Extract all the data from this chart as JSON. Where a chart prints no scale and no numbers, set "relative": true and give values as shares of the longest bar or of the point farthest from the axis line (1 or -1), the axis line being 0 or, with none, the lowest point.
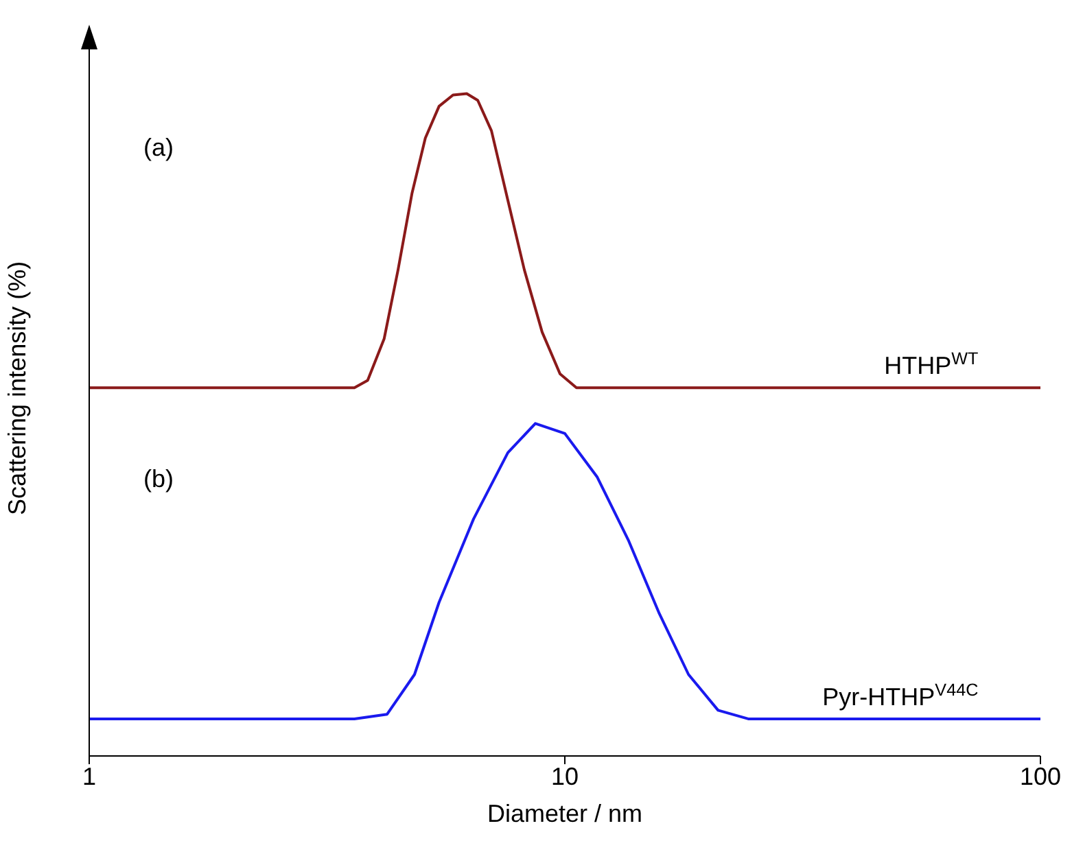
{
  "chart_data": {
    "type": "line",
    "relative": true,
    "xlabel": "Diameter / nm",
    "ylabel": "Scattering intensity (%)",
    "log": "x",
    "xlim": [
      1,
      100
    ],
    "xticks": [
      1,
      10,
      100
    ],
    "grid": false,
    "legend": false,
    "marker": "none",
    "line_style": "solid",
    "annotations": [
      "(a)",
      "(b)"
    ],
    "series": [
      {
        "name": "HTHP$^{WT}$",
        "color": "#8b1a1a",
        "x": [
          1,
          3.61,
          3.85,
          4.17,
          4.46,
          4.77,
          5.09,
          5.44,
          5.82,
          6.22,
          6.56,
          7.01,
          7.59,
          8.22,
          8.96,
          9.77,
          10.58,
          100
        ],
        "values": [
          0.556,
          0.556,
          0.567,
          0.63,
          0.734,
          0.849,
          0.933,
          0.981,
          0.998,
          1,
          0.99,
          0.944,
          0.839,
          0.734,
          0.64,
          0.577,
          0.556,
          0.556
        ]
      },
      {
        "name": "Pyr-HTHP$^{V44C}$",
        "color": "#1a1aee",
        "x": [
          1,
          3.61,
          4.23,
          4.83,
          5.44,
          6.43,
          7.59,
          8.67,
          10.0,
          11.7,
          13.6,
          15.8,
          18.2,
          21.0,
          24.3,
          100
        ],
        "values": [
          0.056,
          0.056,
          0.063,
          0.123,
          0.232,
          0.358,
          0.458,
          0.502,
          0.487,
          0.421,
          0.326,
          0.215,
          0.123,
          0.069,
          0.056,
          0.056
        ]
      }
    ]
  }
}
